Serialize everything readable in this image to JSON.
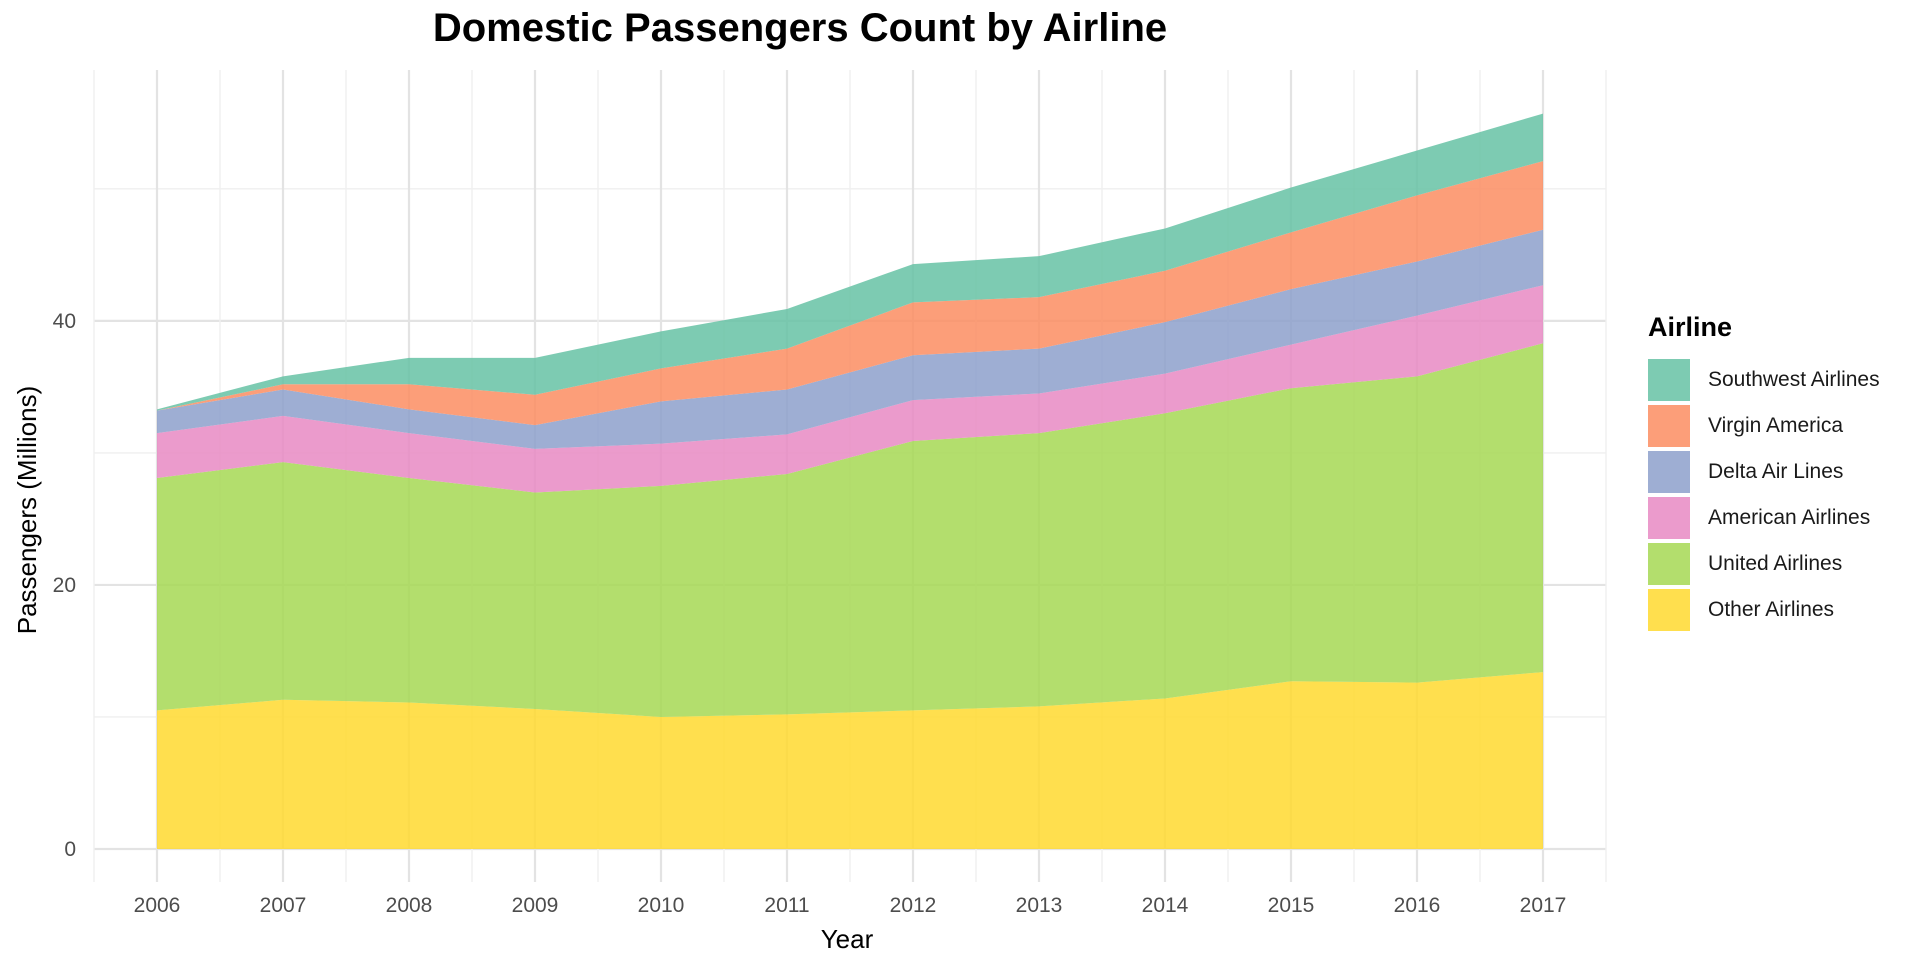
{
  "chart_data": {
    "type": "area",
    "stacked": true,
    "title": "Domestic Passengers Count by Airline",
    "xlabel": "Year",
    "ylabel": "Passengers (Millions)",
    "x": [
      2006,
      2007,
      2008,
      2009,
      2010,
      2011,
      2012,
      2013,
      2014,
      2015,
      2016,
      2017
    ],
    "x_tick_labels": [
      "2006",
      "2007",
      "2008",
      "2009",
      "2010",
      "2011",
      "2012",
      "2013",
      "2014",
      "2015",
      "2016",
      "2017"
    ],
    "ylim": [
      -2.5,
      59
    ],
    "y_ticks": [
      0,
      20,
      40
    ],
    "y_tick_labels": [
      "0",
      "20",
      "40"
    ],
    "grid": true,
    "legend_title": "Airline",
    "legend_position": "right",
    "series": [
      {
        "name": "Other Airlines",
        "color": "#FFD92F",
        "values": [
          10.5,
          11.3,
          11.1,
          10.6,
          10.0,
          10.2,
          10.5,
          10.8,
          11.4,
          12.7,
          12.6,
          13.4
        ]
      },
      {
        "name": "United Airlines",
        "color": "#A6D854",
        "values": [
          17.6,
          18.0,
          17.0,
          16.4,
          17.5,
          18.2,
          20.4,
          20.7,
          21.6,
          22.2,
          23.2,
          24.9
        ]
      },
      {
        "name": "American Airlines",
        "color": "#E78AC3",
        "values": [
          3.4,
          3.5,
          3.4,
          3.3,
          3.2,
          3.0,
          3.1,
          3.0,
          3.0,
          3.3,
          4.6,
          4.4
        ]
      },
      {
        "name": "Delta Air Lines",
        "color": "#8DA0CB",
        "values": [
          1.7,
          2.0,
          1.8,
          1.8,
          3.2,
          3.4,
          3.4,
          3.4,
          3.9,
          4.2,
          4.1,
          4.2
        ]
      },
      {
        "name": "Virgin America",
        "color": "#FC8D62",
        "values": [
          0.0,
          0.4,
          1.9,
          2.3,
          2.5,
          3.1,
          4.0,
          3.9,
          3.9,
          4.3,
          5.0,
          5.2
        ]
      },
      {
        "name": "Southwest Airlines",
        "color": "#66C2A5",
        "values": [
          0.1,
          0.6,
          2.0,
          2.8,
          2.8,
          3.0,
          2.9,
          3.1,
          3.2,
          3.4,
          3.4,
          3.6
        ]
      }
    ],
    "legend_order": [
      "Southwest Airlines",
      "Virgin America",
      "Delta Air Lines",
      "American Airlines",
      "United Airlines",
      "Other Airlines"
    ]
  }
}
